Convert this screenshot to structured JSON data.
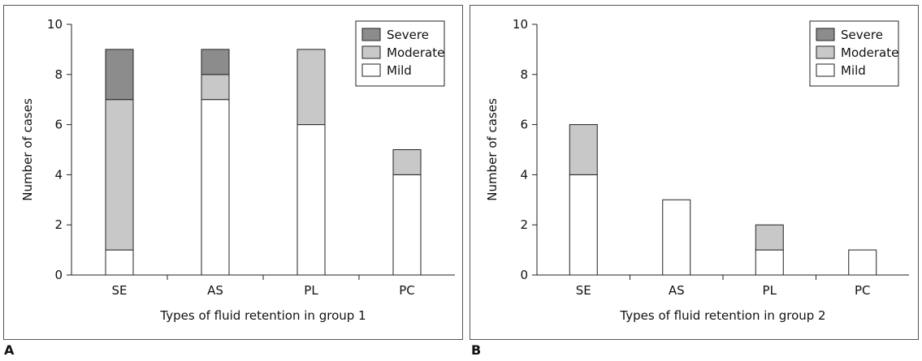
{
  "panels": [
    {
      "letter": "A"
    },
    {
      "letter": "B"
    }
  ],
  "colors": {
    "severe": "#8c8c8c",
    "moderate": "#c8c8c8",
    "mild": "#ffffff",
    "stroke": "#222222"
  },
  "chart_data": [
    {
      "type": "bar",
      "stacked": true,
      "title": "",
      "xlabel": "Types of fluid retention in group 1",
      "ylabel": "Number of cases",
      "ylim": [
        0,
        10
      ],
      "yticks": [
        0,
        2,
        4,
        6,
        8,
        10
      ],
      "categories": [
        "SE",
        "AS",
        "PL",
        "PC"
      ],
      "series": [
        {
          "name": "Mild",
          "values": [
            1,
            7,
            6,
            4
          ]
        },
        {
          "name": "Moderate",
          "values": [
            6,
            1,
            3,
            1
          ]
        },
        {
          "name": "Severe",
          "values": [
            2,
            1,
            0,
            0
          ]
        }
      ],
      "legend": {
        "position": "top-right",
        "order": [
          "Severe",
          "Moderate",
          "Mild"
        ]
      }
    },
    {
      "type": "bar",
      "stacked": true,
      "title": "",
      "xlabel": "Types of fluid retention in group 2",
      "ylabel": "Number of cases",
      "ylim": [
        0,
        10
      ],
      "yticks": [
        0,
        2,
        4,
        6,
        8,
        10
      ],
      "categories": [
        "SE",
        "AS",
        "PL",
        "PC"
      ],
      "series": [
        {
          "name": "Mild",
          "values": [
            4,
            3,
            1,
            1
          ]
        },
        {
          "name": "Moderate",
          "values": [
            2,
            0,
            1,
            0
          ]
        },
        {
          "name": "Severe",
          "values": [
            0,
            0,
            0,
            0
          ]
        }
      ],
      "legend": {
        "position": "top-right",
        "order": [
          "Severe",
          "Moderate",
          "Mild"
        ]
      }
    }
  ]
}
